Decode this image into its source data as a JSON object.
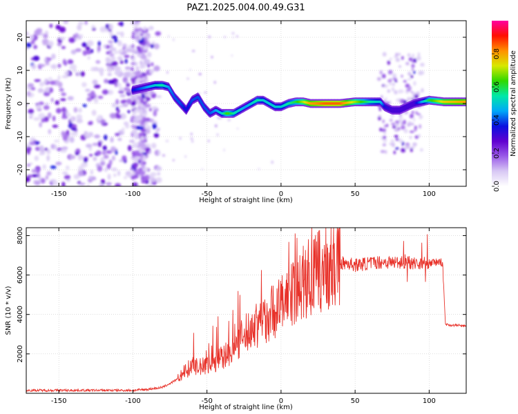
{
  "title": "PAZ1.2025.004.00.49.G31",
  "colors": {
    "snr_line": "#e8322a",
    "colormap": [
      "#ffffff",
      "#d8c8f4",
      "#9a5ae8",
      "#6000d0",
      "#0a10e0",
      "#00a8f8",
      "#00e8a8",
      "#30d800",
      "#d8e800",
      "#ff9000",
      "#ff1000",
      "#ff00a0"
    ]
  },
  "chart_data": [
    {
      "type": "heatmap",
      "name": "spectrogram",
      "xlabel": "Height of straight line (km)",
      "ylabel": "Frequency (Hz)",
      "xlim": [
        -172,
        125
      ],
      "ylim": [
        -25,
        25
      ],
      "xticks": [
        -150,
        -100,
        -50,
        0,
        50,
        100
      ],
      "xtick_labels": [
        "-150",
        "-100",
        "-50",
        "0",
        "50",
        "100"
      ],
      "yticks": [
        -20,
        -10,
        0,
        10,
        20
      ],
      "ytick_labels": [
        "-20",
        "-10",
        "0",
        "10",
        "20"
      ],
      "grid": true,
      "ridge": {
        "x": [
          -100,
          -95,
          -90,
          -85,
          -80,
          -76,
          -72,
          -68,
          -64,
          -60,
          -56,
          -52,
          -48,
          -44,
          -40,
          -36,
          -32,
          -28,
          -24,
          -20,
          -16,
          -12,
          -8,
          -4,
          0,
          5,
          10,
          15,
          20,
          30,
          40,
          50,
          60,
          67,
          70,
          75,
          80,
          85,
          90,
          95,
          100,
          110,
          125
        ],
        "y": [
          4,
          4.5,
          5,
          5.5,
          5.5,
          5,
          2,
          0,
          -2,
          1,
          2,
          -1,
          -3,
          -2,
          -3,
          -3,
          -3,
          -2,
          -1,
          0,
          1,
          1,
          0,
          -1,
          -1,
          0,
          0.5,
          0.5,
          0,
          0,
          0,
          0.5,
          0.5,
          0.5,
          -1,
          -2,
          -2,
          -1,
          0,
          0.5,
          1,
          0.5,
          0.5
        ],
        "amplitude": [
          0.35,
          0.4,
          0.45,
          0.5,
          0.55,
          0.45,
          0.4,
          0.4,
          0.35,
          0.4,
          0.4,
          0.4,
          0.4,
          0.45,
          0.5,
          0.65,
          0.55,
          0.5,
          0.45,
          0.5,
          0.55,
          0.5,
          0.5,
          0.5,
          0.5,
          0.55,
          0.6,
          0.7,
          0.8,
          0.85,
          0.85,
          0.7,
          0.55,
          0.5,
          0.35,
          0.3,
          0.3,
          0.3,
          0.3,
          0.45,
          0.6,
          0.75,
          0.8
        ]
      },
      "colorbar": {
        "label": "Normalized spectral amplitude",
        "range": [
          0,
          1
        ],
        "ticks": [
          0.0,
          0.2,
          0.4,
          0.6,
          0.8
        ],
        "tick_labels": [
          "0.0",
          "0.2",
          "0.4",
          "0.6",
          "0.8"
        ]
      }
    },
    {
      "type": "line",
      "name": "snr",
      "xlabel": "Height of straight line (km)",
      "ylabel": "SNR (10 * v/v)",
      "xlim": [
        -172,
        125
      ],
      "ylim": [
        0,
        8400
      ],
      "xticks": [
        -150,
        -100,
        -50,
        0,
        50,
        100
      ],
      "xtick_labels": [
        "-150",
        "-100",
        "-50",
        "0",
        "50",
        "100"
      ],
      "yticks": [
        2000,
        4000,
        6000,
        8000
      ],
      "ytick_labels": [
        "2000",
        "4000",
        "6000",
        "8000"
      ],
      "grid": true,
      "x": [
        -172,
        -150,
        -120,
        -100,
        -90,
        -80,
        -70,
        -65,
        -60,
        -55,
        -50,
        -45,
        -40,
        -35,
        -30,
        -25,
        -20,
        -15,
        -10,
        -5,
        0,
        5,
        10,
        15,
        20,
        25,
        30,
        35,
        40,
        45,
        50,
        55,
        60,
        65,
        70,
        75,
        80,
        85,
        90,
        95,
        100,
        105,
        109,
        111,
        115,
        120,
        125
      ],
      "y": [
        150,
        150,
        150,
        150,
        200,
        300,
        700,
        1100,
        1400,
        1300,
        1500,
        1600,
        1800,
        2100,
        2500,
        2900,
        3300,
        3600,
        3900,
        4200,
        4500,
        4900,
        5300,
        5600,
        5900,
        6100,
        6300,
        6500,
        6600,
        6600,
        6500,
        6550,
        6600,
        6650,
        6650,
        6650,
        6650,
        6650,
        6600,
        6600,
        6600,
        6650,
        6650,
        3500,
        3450,
        3450,
        3400
      ]
    }
  ]
}
